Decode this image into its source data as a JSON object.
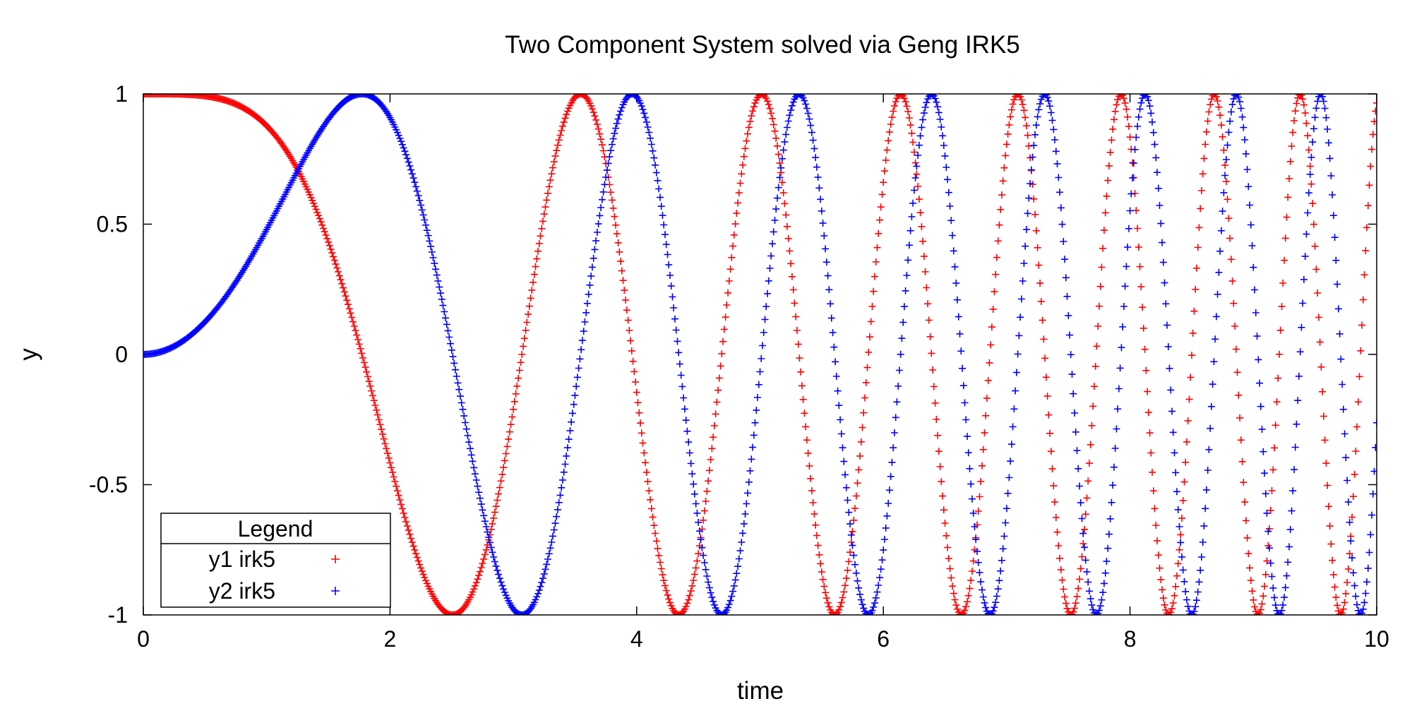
{
  "chart_data": {
    "type": "scatter",
    "title": "Two Component System solved via Geng IRK5",
    "xlabel": "time",
    "ylabel": "y",
    "xlim": [
      0,
      10
    ],
    "ylim": [
      -1,
      1
    ],
    "x_ticks": [
      0,
      2,
      4,
      6,
      8,
      10
    ],
    "y_ticks": [
      1,
      0.5,
      0,
      -0.5,
      -1
    ],
    "x_tick_labels": [
      "0",
      "2",
      "4",
      "6",
      "8",
      "10"
    ],
    "y_tick_labels": [
      "1",
      "0.5",
      "0",
      "-0.5",
      "-1"
    ],
    "legend": {
      "title": "Legend",
      "position": "bottom-left"
    },
    "marker": "+",
    "series": [
      {
        "name": "y1 irk5",
        "color": "#ff0000",
        "function": "cos(t^2/2)",
        "x_range": [
          0,
          10
        ],
        "sample_step": 0.01
      },
      {
        "name": "y2 irk5",
        "color": "#0000ff",
        "function": "sin(t^2/2)",
        "x_range": [
          0,
          10
        ],
        "sample_step": 0.01
      }
    ]
  }
}
